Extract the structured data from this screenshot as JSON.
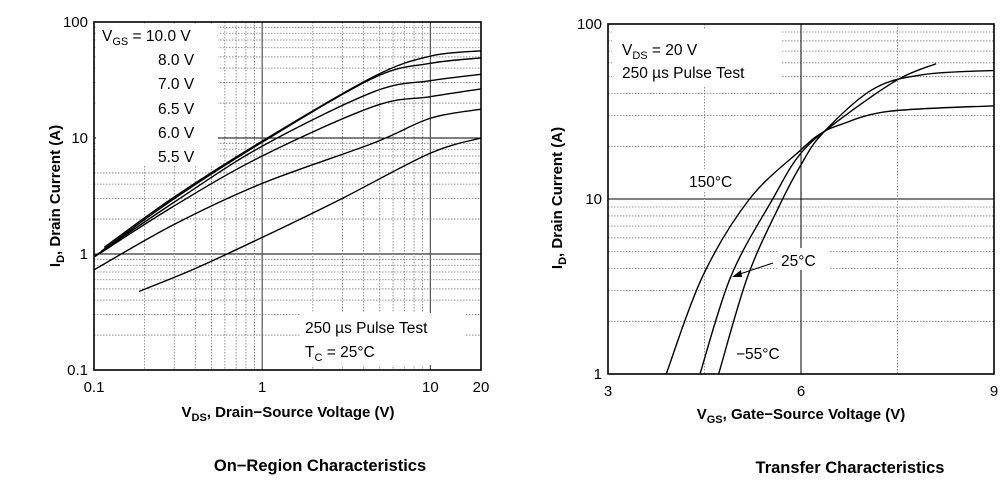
{
  "chart_data": [
    {
      "type": "line",
      "title": "On−Region Characteristics",
      "xlabel": {
        "main": "V",
        "sub": "DS",
        "rest": ", Drain−Source Voltage (V)"
      },
      "ylabel": {
        "main": "I",
        "sub": "D",
        "rest": ", Drain Current (A)"
      },
      "xscale": "log",
      "yscale": "log",
      "xlim": [
        0.1,
        20
      ],
      "ylim": [
        0.1,
        100
      ],
      "xticks": [
        {
          "v": 0.1,
          "label": "0.1"
        },
        {
          "v": 1,
          "label": "1"
        },
        {
          "v": 10,
          "label": "10"
        },
        {
          "v": 20,
          "label": "20"
        }
      ],
      "yticks": [
        {
          "v": 0.1,
          "label": "0.1"
        },
        {
          "v": 1,
          "label": "1"
        },
        {
          "v": 10,
          "label": "10"
        },
        {
          "v": 100,
          "label": "100"
        }
      ],
      "grid": true,
      "legend_header": {
        "main": "V",
        "sub": "GS",
        "rest": " = "
      },
      "annotations": [
        {
          "text": "250 µs Pulse Test"
        },
        {
          "main": "T",
          "sub": "C",
          "rest": " = 25°C"
        }
      ],
      "series": [
        {
          "name": "10.0 V",
          "x": [
            0.115,
            0.3,
            1,
            4.6,
            10,
            20
          ],
          "y": [
            1.14,
            3.1,
            9.4,
            33.8,
            50.8,
            56.4
          ]
        },
        {
          "name": "8.0 V",
          "x": [
            0.11,
            0.3,
            1,
            4.6,
            10,
            20
          ],
          "y": [
            1.05,
            3.0,
            9.2,
            33,
            44,
            49
          ]
        },
        {
          "name": "7.0 V",
          "x": [
            0.1,
            0.3,
            1,
            4.6,
            10,
            20
          ],
          "y": [
            0.95,
            2.8,
            8.5,
            25,
            31.2,
            35.4
          ]
        },
        {
          "name": "6.5 V",
          "x": [
            0.1,
            0.3,
            1,
            4.6,
            10,
            20
          ],
          "y": [
            0.94,
            2.6,
            7.0,
            18.7,
            22.7,
            26.5
          ]
        },
        {
          "name": "6.0 V",
          "x": [
            0.1,
            0.3,
            1,
            4.6,
            10,
            20
          ],
          "y": [
            0.73,
            1.8,
            4.06,
            9.06,
            14.8,
            17.7
          ]
        },
        {
          "name": "5.5 V",
          "x": [
            0.185,
            0.4,
            1,
            2.92,
            10,
            20
          ],
          "y": [
            0.475,
            0.75,
            1.39,
            2.96,
            7.4,
            10
          ]
        }
      ]
    },
    {
      "type": "line",
      "title": "Transfer Characteristics",
      "xlabel": {
        "main": "V",
        "sub": "GS",
        "rest": ", Gate−Source Voltage (V)"
      },
      "ylabel": {
        "main": "I",
        "sub": "D",
        "rest": ", Drain Current (A)"
      },
      "xscale": "linear",
      "yscale": "log",
      "xlim": [
        3,
        9
      ],
      "ylim": [
        1,
        100
      ],
      "xticks": [
        {
          "v": 3,
          "label": "3"
        },
        {
          "v": 6,
          "label": "6"
        },
        {
          "v": 9,
          "label": "9"
        }
      ],
      "yticks": [
        {
          "v": 1,
          "label": "1"
        },
        {
          "v": 10,
          "label": "10"
        },
        {
          "v": 100,
          "label": "100"
        }
      ],
      "grid": true,
      "annotations": [
        {
          "main": "V",
          "sub": "DS",
          "rest": " = 20 V"
        },
        {
          "text": "250 µs Pulse Test"
        }
      ],
      "series": [
        {
          "name": "150°C",
          "x": [
            3.905,
            4.47,
            5.2,
            6.0,
            6.28,
            6.6,
            7.37,
            9.0
          ],
          "y": [
            1,
            3.61,
            10,
            19.1,
            23.3,
            26.5,
            31.7,
            34.1
          ]
        },
        {
          "name": "25°C",
          "x": [
            4.43,
            4.91,
            5.56,
            6.0,
            6.6,
            7.5,
            8.1
          ],
          "y": [
            1,
            3.61,
            10,
            18.3,
            28.4,
            48,
            59.3
          ]
        },
        {
          "name": "−55°C",
          "x": [
            4.72,
            5.17,
            5.66,
            6.0,
            6.34,
            7.11,
            7.89,
            9.0
          ],
          "y": [
            1,
            3.6,
            9.1,
            15.7,
            23.8,
            42.2,
            51.3,
            54.3
          ]
        }
      ]
    }
  ]
}
